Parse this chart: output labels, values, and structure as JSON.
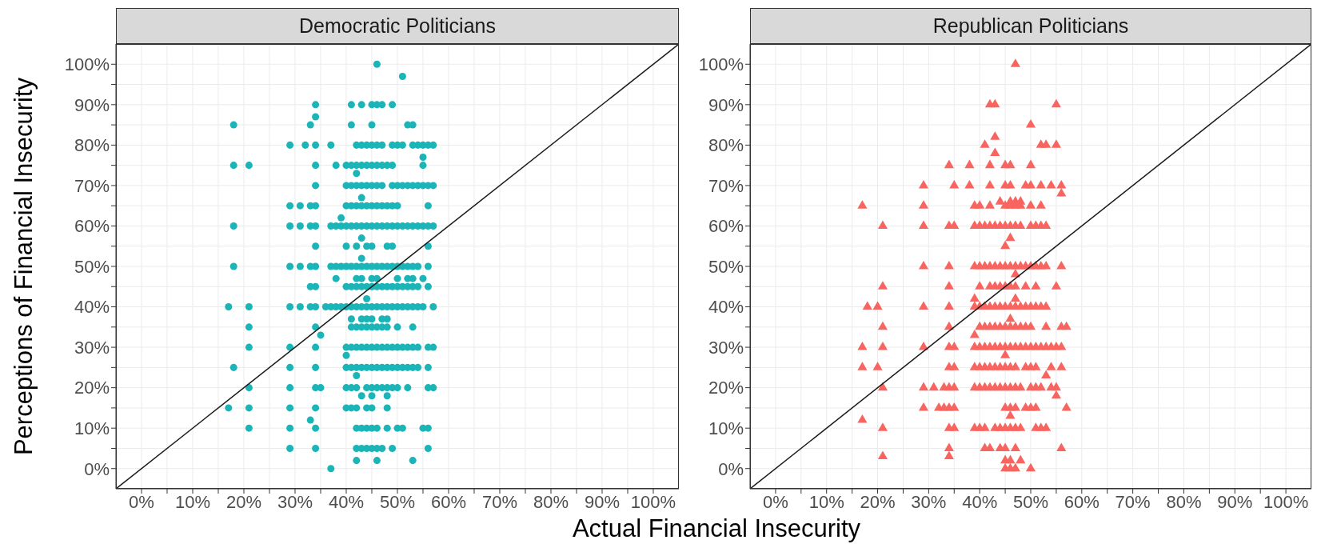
{
  "chart_data": [
    {
      "type": "scatter",
      "title": "Democratic Politicians",
      "xlabel": "Actual Financial Insecurity",
      "ylabel": "Perceptions of Financial Insecurity",
      "grid": true,
      "xlim": [
        -5,
        105
      ],
      "ylim": [
        -5,
        105
      ],
      "xticks": [
        {
          "value": 0,
          "label": "0%"
        },
        {
          "value": 5,
          "label": null
        },
        {
          "value": 10,
          "label": "10%"
        },
        {
          "value": 15,
          "label": null
        },
        {
          "value": 20,
          "label": "20%"
        },
        {
          "value": 25,
          "label": null
        },
        {
          "value": 30,
          "label": "30%"
        },
        {
          "value": 35,
          "label": null
        },
        {
          "value": 40,
          "label": "40%"
        },
        {
          "value": 45,
          "label": null
        },
        {
          "value": 50,
          "label": "50%"
        },
        {
          "value": 55,
          "label": null
        },
        {
          "value": 60,
          "label": "60%"
        },
        {
          "value": 65,
          "label": null
        },
        {
          "value": 70,
          "label": "70%"
        },
        {
          "value": 75,
          "label": null
        },
        {
          "value": 80,
          "label": "80%"
        },
        {
          "value": 85,
          "label": null
        },
        {
          "value": 90,
          "label": "90%"
        },
        {
          "value": 95,
          "label": null
        },
        {
          "value": 100,
          "label": "100%"
        }
      ],
      "yticks": [
        {
          "value": 0,
          "label": "0%"
        },
        {
          "value": 5,
          "label": null
        },
        {
          "value": 10,
          "label": "10%"
        },
        {
          "value": 15,
          "label": null
        },
        {
          "value": 20,
          "label": "20%"
        },
        {
          "value": 25,
          "label": null
        },
        {
          "value": 30,
          "label": "30%"
        },
        {
          "value": 35,
          "label": null
        },
        {
          "value": 40,
          "label": "40%"
        },
        {
          "value": 45,
          "label": null
        },
        {
          "value": 50,
          "label": "50%"
        },
        {
          "value": 55,
          "label": null
        },
        {
          "value": 60,
          "label": "60%"
        },
        {
          "value": 65,
          "label": null
        },
        {
          "value": 70,
          "label": "70%"
        },
        {
          "value": 75,
          "label": null
        },
        {
          "value": 80,
          "label": "80%"
        },
        {
          "value": 85,
          "label": null
        },
        {
          "value": 90,
          "label": "90%"
        },
        {
          "value": 95,
          "label": null
        },
        {
          "value": 100,
          "label": "100%"
        }
      ],
      "series": [
        {
          "color": "#1bb5b8",
          "marker": "circle",
          "x": [
            46,
            51,
            34,
            41,
            43,
            45,
            46,
            47,
            49,
            34,
            18,
            33,
            41,
            45,
            52,
            53,
            29,
            32,
            34,
            37,
            42,
            43,
            44,
            45,
            46,
            47,
            49,
            50,
            51,
            53,
            54,
            55,
            56,
            57,
            55,
            18,
            21,
            34,
            38,
            40,
            41,
            42,
            43,
            44,
            45,
            46,
            47,
            48,
            49,
            55,
            42,
            34,
            40,
            41,
            42,
            43,
            44,
            45,
            46,
            47,
            49,
            50,
            51,
            52,
            53,
            54,
            55,
            56,
            57,
            43,
            29,
            31,
            33,
            34,
            40,
            41,
            42,
            43,
            44,
            45,
            46,
            47,
            48,
            49,
            50,
            56,
            39,
            18,
            29,
            31,
            33,
            34,
            37,
            38,
            39,
            40,
            41,
            42,
            43,
            44,
            45,
            46,
            47,
            48,
            49,
            50,
            51,
            52,
            53,
            54,
            55,
            56,
            57,
            43,
            34,
            40,
            42,
            44,
            45,
            48,
            49,
            56,
            43,
            18,
            29,
            31,
            33,
            34,
            37,
            38,
            39,
            40,
            41,
            42,
            43,
            44,
            45,
            46,
            47,
            48,
            49,
            50,
            51,
            52,
            53,
            54,
            56,
            38,
            42,
            43,
            45,
            46,
            50,
            52,
            53,
            55,
            33,
            34,
            40,
            41,
            42,
            43,
            44,
            45,
            46,
            47,
            48,
            49,
            50,
            51,
            52,
            53,
            54,
            56,
            44,
            17,
            21,
            29,
            31,
            33,
            34,
            36,
            37,
            38,
            39,
            40,
            41,
            42,
            43,
            44,
            45,
            46,
            47,
            48,
            49,
            50,
            51,
            52,
            53,
            54,
            55,
            57,
            41,
            43,
            44,
            45,
            47,
            48,
            21,
            34,
            41,
            42,
            43,
            44,
            45,
            46,
            47,
            48,
            50,
            53,
            35,
            21,
            29,
            34,
            40,
            41,
            42,
            43,
            44,
            45,
            46,
            47,
            48,
            49,
            50,
            51,
            52,
            53,
            54,
            56,
            57,
            40,
            18,
            29,
            34,
            40,
            41,
            42,
            43,
            44,
            45,
            46,
            47,
            48,
            49,
            50,
            51,
            52,
            53,
            54,
            56,
            42,
            21,
            29,
            34,
            35,
            40,
            41,
            42,
            44,
            45,
            46,
            47,
            48,
            49,
            50,
            52,
            56,
            57,
            43,
            45,
            48,
            17,
            21,
            29,
            34,
            40,
            41,
            42,
            44,
            45,
            48,
            33,
            21,
            29,
            34,
            42,
            43,
            44,
            45,
            46,
            48,
            50,
            51,
            55,
            56,
            29,
            34,
            42,
            43,
            44,
            45,
            46,
            47,
            49,
            56,
            42,
            46,
            53,
            37
          ],
          "values": [
            100,
            97,
            90,
            90,
            90,
            90,
            90,
            90,
            90,
            87,
            85,
            85,
            85,
            85,
            85,
            85,
            80,
            80,
            80,
            80,
            80,
            80,
            80,
            80,
            80,
            80,
            80,
            80,
            80,
            80,
            80,
            80,
            80,
            80,
            77,
            75,
            75,
            75,
            75,
            75,
            75,
            75,
            75,
            75,
            75,
            75,
            75,
            75,
            75,
            75,
            73,
            70,
            70,
            70,
            70,
            70,
            70,
            70,
            70,
            70,
            70,
            70,
            70,
            70,
            70,
            70,
            70,
            70,
            70,
            67,
            65,
            65,
            65,
            65,
            65,
            65,
            65,
            65,
            65,
            65,
            65,
            65,
            65,
            65,
            65,
            65,
            62,
            60,
            60,
            60,
            60,
            60,
            60,
            60,
            60,
            60,
            60,
            60,
            60,
            60,
            60,
            60,
            60,
            60,
            60,
            60,
            60,
            60,
            60,
            60,
            60,
            60,
            60,
            57,
            55,
            55,
            55,
            55,
            55,
            55,
            55,
            55,
            52,
            50,
            50,
            50,
            50,
            50,
            50,
            50,
            50,
            50,
            50,
            50,
            50,
            50,
            50,
            50,
            50,
            50,
            50,
            50,
            50,
            50,
            50,
            50,
            50,
            47,
            47,
            47,
            47,
            47,
            47,
            47,
            47,
            47,
            45,
            45,
            45,
            45,
            45,
            45,
            45,
            45,
            45,
            45,
            45,
            45,
            45,
            45,
            45,
            45,
            45,
            45,
            42,
            40,
            40,
            40,
            40,
            40,
            40,
            40,
            40,
            40,
            40,
            40,
            40,
            40,
            40,
            40,
            40,
            40,
            40,
            40,
            40,
            40,
            40,
            40,
            40,
            40,
            40,
            40,
            37,
            37,
            37,
            37,
            37,
            37,
            35,
            35,
            35,
            35,
            35,
            35,
            35,
            35,
            35,
            35,
            35,
            35,
            33,
            30,
            30,
            30,
            30,
            30,
            30,
            30,
            30,
            30,
            30,
            30,
            30,
            30,
            30,
            30,
            30,
            30,
            30,
            30,
            30,
            28,
            25,
            25,
            25,
            25,
            25,
            25,
            25,
            25,
            25,
            25,
            25,
            25,
            25,
            25,
            25,
            25,
            25,
            25,
            25,
            23,
            20,
            20,
            20,
            20,
            20,
            20,
            20,
            20,
            20,
            20,
            20,
            20,
            20,
            20,
            20,
            20,
            20,
            18,
            18,
            18,
            15,
            15,
            15,
            15,
            15,
            15,
            15,
            15,
            15,
            15,
            12,
            10,
            10,
            10,
            10,
            10,
            10,
            10,
            10,
            10,
            10,
            10,
            10,
            10,
            5,
            5,
            5,
            5,
            5,
            5,
            5,
            5,
            5,
            5,
            2,
            2,
            2,
            0
          ]
        },
        {
          "type": "line",
          "marker": "none",
          "color": "#1a1a1a",
          "x": [
            -5,
            105
          ],
          "values": [
            -5,
            105
          ]
        }
      ]
    },
    {
      "type": "scatter",
      "title": "Republican Politicians",
      "grid": true,
      "xlim": [
        -5,
        105
      ],
      "ylim": [
        -5,
        105
      ],
      "xticks": [
        {
          "value": 0,
          "label": "0%"
        },
        {
          "value": 5,
          "label": null
        },
        {
          "value": 10,
          "label": "10%"
        },
        {
          "value": 15,
          "label": null
        },
        {
          "value": 20,
          "label": "20%"
        },
        {
          "value": 25,
          "label": null
        },
        {
          "value": 30,
          "label": "30%"
        },
        {
          "value": 35,
          "label": null
        },
        {
          "value": 40,
          "label": "40%"
        },
        {
          "value": 45,
          "label": null
        },
        {
          "value": 50,
          "label": "50%"
        },
        {
          "value": 55,
          "label": null
        },
        {
          "value": 60,
          "label": "60%"
        },
        {
          "value": 65,
          "label": null
        },
        {
          "value": 70,
          "label": "70%"
        },
        {
          "value": 75,
          "label": null
        },
        {
          "value": 80,
          "label": "80%"
        },
        {
          "value": 85,
          "label": null
        },
        {
          "value": 90,
          "label": "90%"
        },
        {
          "value": 95,
          "label": null
        },
        {
          "value": 100,
          "label": "100%"
        }
      ],
      "yticks": [
        {
          "value": 0,
          "label": "0%"
        },
        {
          "value": 5,
          "label": null
        },
        {
          "value": 10,
          "label": "10%"
        },
        {
          "value": 15,
          "label": null
        },
        {
          "value": 20,
          "label": "20%"
        },
        {
          "value": 25,
          "label": null
        },
        {
          "value": 30,
          "label": "30%"
        },
        {
          "value": 35,
          "label": null
        },
        {
          "value": 40,
          "label": "40%"
        },
        {
          "value": 45,
          "label": null
        },
        {
          "value": 50,
          "label": "50%"
        },
        {
          "value": 55,
          "label": null
        },
        {
          "value": 60,
          "label": "60%"
        },
        {
          "value": 65,
          "label": null
        },
        {
          "value": 70,
          "label": "70%"
        },
        {
          "value": 75,
          "label": null
        },
        {
          "value": 80,
          "label": "80%"
        },
        {
          "value": 85,
          "label": null
        },
        {
          "value": 90,
          "label": "90%"
        },
        {
          "value": 95,
          "label": null
        },
        {
          "value": 100,
          "label": "100%"
        }
      ],
      "series": [
        {
          "color": "#f8645f",
          "marker": "triangle",
          "x": [
            47,
            42,
            43,
            55,
            50,
            43,
            41,
            52,
            53,
            55,
            43,
            34,
            38,
            42,
            45,
            46,
            50,
            29,
            35,
            38,
            42,
            45,
            46,
            49,
            50,
            52,
            54,
            56,
            56,
            44,
            46,
            47,
            48,
            17,
            29,
            39,
            40,
            42,
            45,
            46,
            47,
            48,
            50,
            52,
            21,
            29,
            34,
            35,
            39,
            40,
            41,
            42,
            43,
            44,
            45,
            46,
            47,
            48,
            50,
            51,
            52,
            53,
            46,
            45,
            29,
            34,
            39,
            40,
            41,
            42,
            43,
            44,
            45,
            46,
            47,
            48,
            49,
            50,
            51,
            52,
            53,
            56,
            47,
            21,
            34,
            40,
            42,
            43,
            44,
            45,
            46,
            47,
            49,
            51,
            55,
            39,
            47,
            18,
            20,
            29,
            34,
            39,
            40,
            41,
            42,
            43,
            44,
            45,
            46,
            47,
            48,
            49,
            50,
            51,
            52,
            53,
            46,
            21,
            34,
            40,
            41,
            42,
            43,
            44,
            45,
            46,
            47,
            48,
            49,
            50,
            53,
            56,
            57,
            39,
            17,
            21,
            29,
            34,
            35,
            39,
            40,
            41,
            42,
            43,
            44,
            45,
            46,
            47,
            48,
            49,
            50,
            51,
            52,
            53,
            54,
            55,
            56,
            45,
            17,
            20,
            34,
            35,
            39,
            40,
            41,
            42,
            43,
            44,
            45,
            46,
            47,
            49,
            50,
            51,
            54,
            56,
            53,
            21,
            29,
            31,
            33,
            34,
            35,
            39,
            40,
            41,
            42,
            43,
            44,
            45,
            46,
            47,
            48,
            50,
            51,
            52,
            54,
            55,
            55,
            29,
            32,
            33,
            34,
            35,
            45,
            46,
            47,
            49,
            50,
            51,
            57,
            46,
            17,
            21,
            34,
            35,
            39,
            40,
            41,
            43,
            44,
            45,
            46,
            47,
            48,
            51,
            52,
            53,
            34,
            41,
            42,
            44,
            45,
            47,
            56,
            21,
            34,
            45,
            46,
            48,
            45,
            46,
            47,
            50
          ],
          "values": [
            100,
            90,
            90,
            90,
            85,
            82,
            80,
            80,
            80,
            80,
            78,
            75,
            75,
            75,
            75,
            75,
            75,
            70,
            70,
            70,
            70,
            70,
            70,
            70,
            70,
            70,
            70,
            70,
            68,
            66,
            66,
            66,
            66,
            65,
            65,
            65,
            65,
            65,
            65,
            65,
            65,
            65,
            65,
            65,
            60,
            60,
            60,
            60,
            60,
            60,
            60,
            60,
            60,
            60,
            60,
            60,
            60,
            60,
            60,
            60,
            60,
            60,
            57,
            55,
            50,
            50,
            50,
            50,
            50,
            50,
            50,
            50,
            50,
            50,
            50,
            50,
            50,
            50,
            50,
            50,
            50,
            50,
            48,
            45,
            45,
            45,
            45,
            45,
            45,
            45,
            45,
            45,
            45,
            45,
            45,
            42,
            42,
            40,
            40,
            40,
            40,
            40,
            40,
            40,
            40,
            40,
            40,
            40,
            40,
            40,
            40,
            40,
            40,
            40,
            40,
            40,
            37,
            35,
            35,
            35,
            35,
            35,
            35,
            35,
            35,
            35,
            35,
            35,
            35,
            35,
            35,
            35,
            35,
            33,
            30,
            30,
            30,
            30,
            30,
            30,
            30,
            30,
            30,
            30,
            30,
            30,
            30,
            30,
            30,
            30,
            30,
            30,
            30,
            30,
            30,
            30,
            30,
            28,
            25,
            25,
            25,
            25,
            25,
            25,
            25,
            25,
            25,
            25,
            25,
            25,
            25,
            25,
            25,
            25,
            25,
            25,
            23,
            20,
            20,
            20,
            20,
            20,
            20,
            20,
            20,
            20,
            20,
            20,
            20,
            20,
            20,
            20,
            20,
            20,
            20,
            20,
            20,
            20,
            18,
            15,
            15,
            15,
            15,
            15,
            15,
            15,
            15,
            15,
            15,
            15,
            15,
            13,
            12,
            10,
            10,
            10,
            10,
            10,
            10,
            10,
            10,
            10,
            10,
            10,
            10,
            10,
            10,
            10,
            5,
            5,
            5,
            5,
            5,
            5,
            5,
            3,
            3,
            2,
            2,
            2,
            0,
            0,
            0,
            0
          ]
        },
        {
          "type": "line",
          "marker": "none",
          "color": "#1a1a1a",
          "x": [
            -5,
            105
          ],
          "values": [
            -5,
            105
          ]
        }
      ]
    }
  ]
}
